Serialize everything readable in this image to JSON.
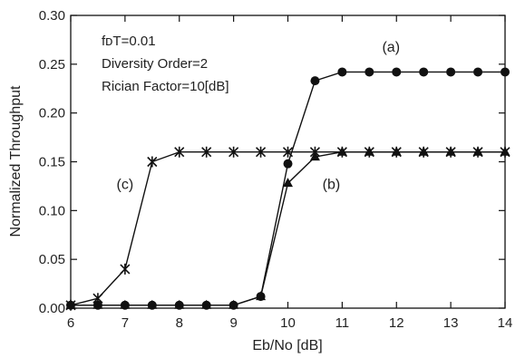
{
  "chart_data": {
    "type": "line",
    "xlabel": "Eb/No [dB]",
    "ylabel": "Normalized Throughput",
    "xlim": [
      6,
      14
    ],
    "ylim": [
      0,
      0.3
    ],
    "xticks": [
      "6",
      "7",
      "8",
      "9",
      "10",
      "11",
      "12",
      "13",
      "14"
    ],
    "yticks": [
      "0.00",
      "0.05",
      "0.10",
      "0.15",
      "0.20",
      "0.25",
      "0.30"
    ],
    "grid": false,
    "legend": "none",
    "annotations": [
      "fᴅT=0.01",
      "Diversity Order=2",
      "Rician Factor=10[dB]"
    ],
    "series": [
      {
        "name": "(a)",
        "marker": "circle",
        "color": "#111111",
        "x": [
          6,
          6.5,
          7,
          7.5,
          8,
          8.5,
          9,
          9.5,
          10,
          10.5,
          11,
          11.5,
          12,
          12.5,
          13,
          13.5,
          14
        ],
        "y": [
          0.003,
          0.003,
          0.003,
          0.003,
          0.003,
          0.003,
          0.003,
          0.012,
          0.148,
          0.233,
          0.242,
          0.242,
          0.242,
          0.242,
          0.242,
          0.242,
          0.242
        ]
      },
      {
        "name": "(b)",
        "marker": "triangle",
        "color": "#111111",
        "x": [
          6,
          6.5,
          7,
          7.5,
          8,
          8.5,
          9,
          9.5,
          10,
          10.5,
          11,
          11.5,
          12,
          12.5,
          13,
          13.5,
          14
        ],
        "y": [
          0.003,
          0.003,
          0.003,
          0.003,
          0.003,
          0.003,
          0.003,
          0.012,
          0.128,
          0.155,
          0.16,
          0.16,
          0.16,
          0.16,
          0.16,
          0.16,
          0.16
        ]
      },
      {
        "name": "(c)",
        "marker": "star",
        "color": "#111111",
        "x": [
          6,
          6.5,
          7,
          7.5,
          8,
          8.5,
          9,
          9.5,
          10,
          10.5,
          11,
          11.5,
          12,
          12.5,
          13,
          13.5,
          14
        ],
        "y": [
          0.003,
          0.01,
          0.04,
          0.15,
          0.16,
          0.16,
          0.16,
          0.16,
          0.16,
          0.16,
          0.16,
          0.16,
          0.16,
          0.16,
          0.16,
          0.16,
          0.16
        ]
      }
    ],
    "curve_labels": [
      {
        "text": "(a)",
        "x": 11.9,
        "y": 0.263
      },
      {
        "text": "(b)",
        "x": 10.8,
        "y": 0.122
      },
      {
        "text": "(c)",
        "x": 7.0,
        "y": 0.122
      }
    ]
  }
}
